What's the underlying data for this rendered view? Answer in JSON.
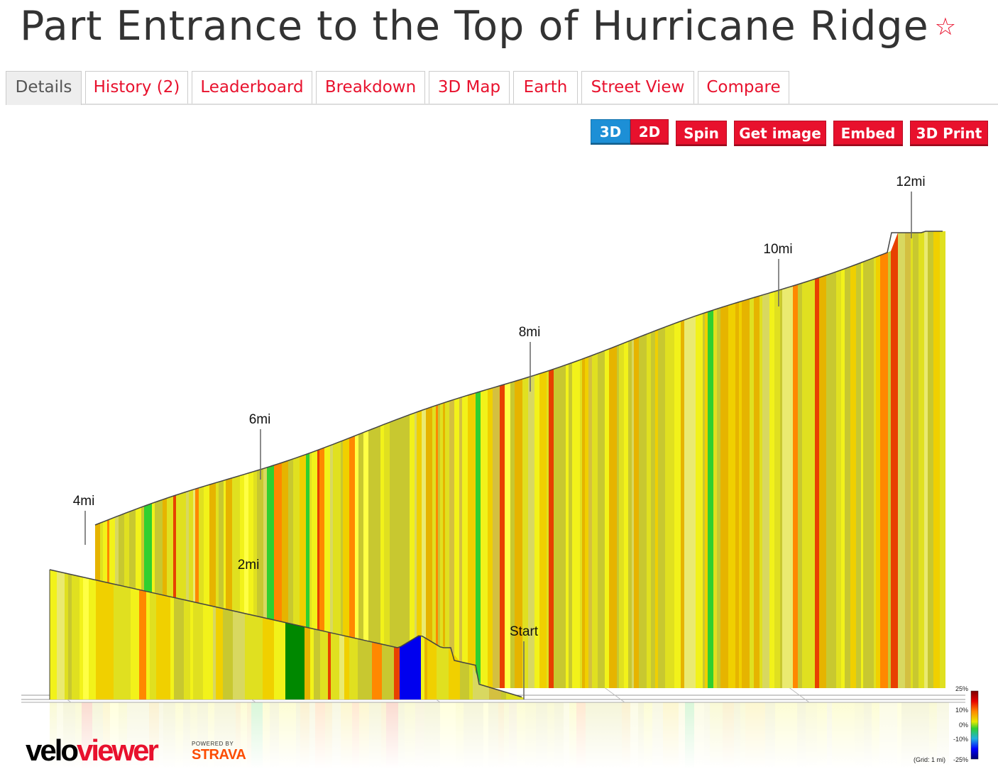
{
  "page": {
    "title": "Part Entrance to the Top of Hurricane Ridge",
    "star_icon": "☆"
  },
  "tabs": [
    {
      "label": "Details",
      "active": true
    },
    {
      "label": "History (2)"
    },
    {
      "label": "Leaderboard"
    },
    {
      "label": "Breakdown"
    },
    {
      "label": "3D Map"
    },
    {
      "label": "Earth"
    },
    {
      "label": "Street View"
    },
    {
      "label": "Compare"
    }
  ],
  "toolbar": {
    "btn_3d": "3D",
    "btn_2d": "2D",
    "spin": "Spin",
    "get_image": "Get image",
    "embed": "Embed",
    "print3d": "3D Print"
  },
  "profile": {
    "mile_labels": [
      "2mi",
      "4mi",
      "6mi",
      "8mi",
      "10mi",
      "12mi"
    ],
    "start_label": "Start",
    "grade_palette": [
      "#c8c830",
      "#e0e020",
      "#f2f21a",
      "#e6b400",
      "#f0d000",
      "#d8d860",
      "#b8b840",
      "#ff8800",
      "#e84000",
      "#ffff44",
      "#d4c040",
      "#eaea70",
      "#c0c060",
      "#30d030",
      "#9a9a30"
    ]
  },
  "legend": {
    "ticks": [
      "25%",
      "10%",
      "0%",
      "-10%",
      "-25%"
    ],
    "grid_note": "(Grid: 1 mi)"
  },
  "branding": {
    "logo_velo": "velo",
    "logo_viewer": "viewer",
    "powered_by": "POWERED BY",
    "strava": "STRAVA"
  }
}
